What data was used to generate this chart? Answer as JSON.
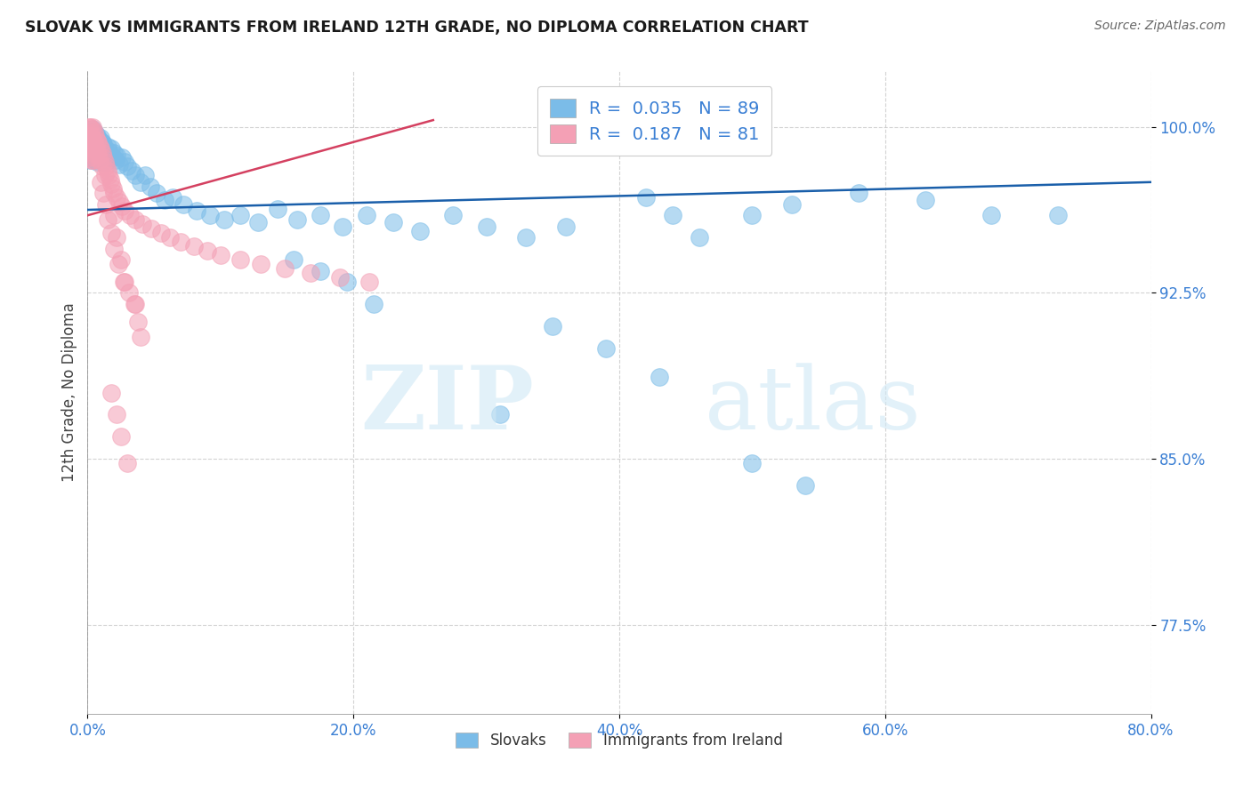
{
  "title": "SLOVAK VS IMMIGRANTS FROM IRELAND 12TH GRADE, NO DIPLOMA CORRELATION CHART",
  "source": "Source: ZipAtlas.com",
  "ylabel": "12th Grade, No Diploma",
  "x_tick_labels": [
    "0.0%",
    "20.0%",
    "40.0%",
    "60.0%",
    "80.0%"
  ],
  "y_tick_labels": [
    "77.5%",
    "85.0%",
    "92.5%",
    "100.0%"
  ],
  "x_ticks": [
    0.0,
    0.2,
    0.4,
    0.6,
    0.8
  ],
  "y_ticks": [
    0.775,
    0.85,
    0.925,
    1.0
  ],
  "x_range": [
    0.0,
    0.8
  ],
  "y_range": [
    0.735,
    1.025
  ],
  "legend_labels": [
    "Slovaks",
    "Immigrants from Ireland"
  ],
  "legend_R": [
    0.035,
    0.187
  ],
  "legend_N": [
    89,
    81
  ],
  "blue_color": "#7bbce8",
  "pink_color": "#f4a0b5",
  "trend_blue": "#1a5faa",
  "trend_pink": "#d44060",
  "watermark_zip": "ZIP",
  "watermark_atlas": "atlas",
  "background_color": "#ffffff",
  "grid_color": "#c8c8c8",
  "title_color": "#1a1a1a",
  "label_color": "#3a7fd4",
  "axis_label_color": "#444444",
  "slovaks_x": [
    0.001,
    0.001,
    0.002,
    0.002,
    0.002,
    0.003,
    0.003,
    0.003,
    0.004,
    0.004,
    0.004,
    0.005,
    0.005,
    0.005,
    0.006,
    0.006,
    0.006,
    0.007,
    0.007,
    0.007,
    0.008,
    0.008,
    0.009,
    0.009,
    0.01,
    0.01,
    0.011,
    0.011,
    0.012,
    0.013,
    0.013,
    0.014,
    0.015,
    0.015,
    0.016,
    0.017,
    0.018,
    0.019,
    0.02,
    0.021,
    0.022,
    0.024,
    0.026,
    0.028,
    0.03,
    0.033,
    0.036,
    0.04,
    0.043,
    0.047,
    0.052,
    0.058,
    0.064,
    0.072,
    0.082,
    0.092,
    0.103,
    0.115,
    0.128,
    0.143,
    0.158,
    0.175,
    0.192,
    0.21,
    0.23,
    0.25,
    0.275,
    0.3,
    0.33,
    0.36,
    0.155,
    0.175,
    0.195,
    0.215,
    0.42,
    0.44,
    0.46,
    0.5,
    0.53,
    0.58,
    0.63,
    0.68,
    0.73,
    0.5,
    0.54,
    0.43,
    0.39,
    0.35,
    0.31
  ],
  "slovaks_y": [
    0.998,
    0.993,
    0.997,
    0.991,
    0.985,
    0.998,
    0.992,
    0.986,
    0.999,
    0.994,
    0.988,
    0.998,
    0.992,
    0.986,
    0.997,
    0.991,
    0.985,
    0.996,
    0.99,
    0.984,
    0.995,
    0.988,
    0.994,
    0.987,
    0.995,
    0.988,
    0.993,
    0.986,
    0.992,
    0.99,
    0.984,
    0.988,
    0.991,
    0.985,
    0.989,
    0.987,
    0.99,
    0.986,
    0.988,
    0.985,
    0.987,
    0.983,
    0.986,
    0.984,
    0.982,
    0.98,
    0.978,
    0.975,
    0.978,
    0.973,
    0.97,
    0.967,
    0.968,
    0.965,
    0.962,
    0.96,
    0.958,
    0.96,
    0.957,
    0.963,
    0.958,
    0.96,
    0.955,
    0.96,
    0.957,
    0.953,
    0.96,
    0.955,
    0.95,
    0.955,
    0.94,
    0.935,
    0.93,
    0.92,
    0.968,
    0.96,
    0.95,
    0.96,
    0.965,
    0.97,
    0.967,
    0.96,
    0.96,
    0.848,
    0.838,
    0.887,
    0.9,
    0.91,
    0.87
  ],
  "ireland_x": [
    0.001,
    0.001,
    0.001,
    0.002,
    0.002,
    0.002,
    0.002,
    0.003,
    0.003,
    0.003,
    0.003,
    0.004,
    0.004,
    0.004,
    0.004,
    0.005,
    0.005,
    0.005,
    0.006,
    0.006,
    0.006,
    0.007,
    0.007,
    0.008,
    0.008,
    0.009,
    0.009,
    0.01,
    0.011,
    0.011,
    0.012,
    0.013,
    0.013,
    0.014,
    0.015,
    0.016,
    0.017,
    0.018,
    0.019,
    0.02,
    0.022,
    0.024,
    0.026,
    0.028,
    0.032,
    0.036,
    0.041,
    0.048,
    0.055,
    0.062,
    0.07,
    0.08,
    0.09,
    0.1,
    0.115,
    0.13,
    0.148,
    0.168,
    0.19,
    0.212,
    0.02,
    0.022,
    0.025,
    0.028,
    0.035,
    0.04,
    0.018,
    0.022,
    0.025,
    0.03,
    0.01,
    0.012,
    0.014,
    0.015,
    0.018,
    0.02,
    0.023,
    0.027,
    0.031,
    0.036,
    0.038
  ],
  "ireland_y": [
    1.0,
    0.997,
    0.992,
    1.0,
    0.996,
    0.991,
    0.986,
    0.999,
    0.995,
    0.99,
    0.985,
    1.0,
    0.995,
    0.99,
    0.985,
    0.998,
    0.993,
    0.988,
    0.996,
    0.991,
    0.986,
    0.994,
    0.989,
    0.993,
    0.987,
    0.991,
    0.985,
    0.99,
    0.988,
    0.982,
    0.986,
    0.984,
    0.978,
    0.982,
    0.98,
    0.978,
    0.976,
    0.974,
    0.972,
    0.97,
    0.968,
    0.966,
    0.964,
    0.962,
    0.96,
    0.958,
    0.956,
    0.954,
    0.952,
    0.95,
    0.948,
    0.946,
    0.944,
    0.942,
    0.94,
    0.938,
    0.936,
    0.934,
    0.932,
    0.93,
    0.96,
    0.95,
    0.94,
    0.93,
    0.92,
    0.905,
    0.88,
    0.87,
    0.86,
    0.848,
    0.975,
    0.97,
    0.965,
    0.958,
    0.952,
    0.945,
    0.938,
    0.93,
    0.925,
    0.92,
    0.912
  ],
  "trend_blue_x0": 0.0,
  "trend_blue_y0": 0.9625,
  "trend_blue_x1": 0.8,
  "trend_blue_y1": 0.975,
  "trend_pink_x0": 0.0,
  "trend_pink_y0": 0.96,
  "trend_pink_x1": 0.26,
  "trend_pink_y1": 1.003
}
